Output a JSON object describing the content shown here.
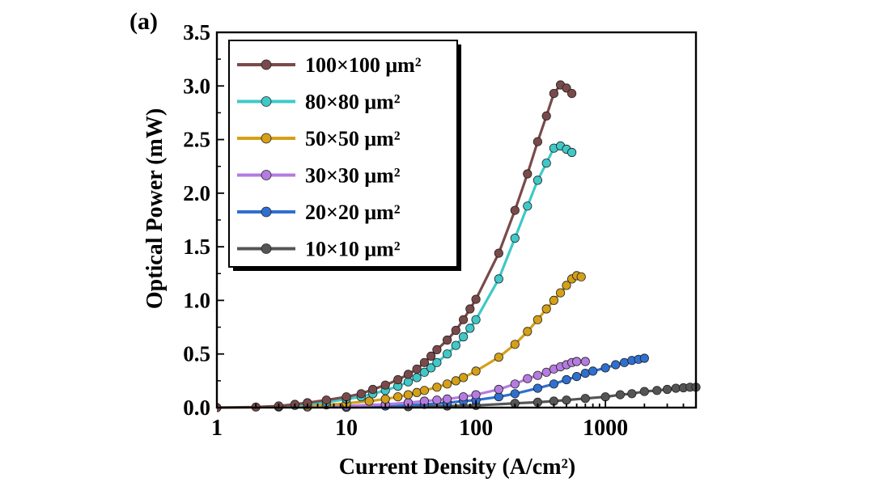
{
  "panel_label": "(a)",
  "chart_data": {
    "type": "line",
    "title": "",
    "xlabel": "Current Density (A/cm²)",
    "ylabel": "Optical Power (mW)",
    "x_scale": "log",
    "xlim": [
      1,
      5000
    ],
    "ylim": [
      0,
      3.5
    ],
    "x_ticks": [
      "1",
      "10",
      "100",
      "1000"
    ],
    "y_ticks": [
      "0.0",
      "0.5",
      "1.0",
      "1.5",
      "2.0",
      "2.5",
      "3.0",
      "3.5"
    ],
    "legend_position": "top-left",
    "grid": false,
    "series": [
      {
        "name": "100×100 μm²",
        "color": "#7a4a4a",
        "points": [
          [
            1,
            0
          ],
          [
            2,
            0.005
          ],
          [
            3,
            0.015
          ],
          [
            4,
            0.03
          ],
          [
            5,
            0.045
          ],
          [
            7,
            0.07
          ],
          [
            10,
            0.1
          ],
          [
            13,
            0.13
          ],
          [
            16,
            0.17
          ],
          [
            20,
            0.21
          ],
          [
            25,
            0.26
          ],
          [
            30,
            0.31
          ],
          [
            35,
            0.36
          ],
          [
            40,
            0.42
          ],
          [
            45,
            0.48
          ],
          [
            50,
            0.54
          ],
          [
            60,
            0.63
          ],
          [
            70,
            0.72
          ],
          [
            80,
            0.82
          ],
          [
            90,
            0.92
          ],
          [
            100,
            1.01
          ],
          [
            150,
            1.44
          ],
          [
            200,
            1.84
          ],
          [
            250,
            2.18
          ],
          [
            300,
            2.48
          ],
          [
            350,
            2.72
          ],
          [
            400,
            2.93
          ],
          [
            450,
            3.01
          ],
          [
            500,
            2.98
          ],
          [
            550,
            2.93
          ]
        ]
      },
      {
        "name": "80×80 μm²",
        "color": "#40c8c8",
        "points": [
          [
            3,
            0.01
          ],
          [
            4,
            0.02
          ],
          [
            5,
            0.03
          ],
          [
            7,
            0.05
          ],
          [
            10,
            0.08
          ],
          [
            13,
            0.1
          ],
          [
            16,
            0.13
          ],
          [
            20,
            0.16
          ],
          [
            25,
            0.2
          ],
          [
            30,
            0.24
          ],
          [
            35,
            0.28
          ],
          [
            40,
            0.33
          ],
          [
            45,
            0.37
          ],
          [
            50,
            0.42
          ],
          [
            60,
            0.5
          ],
          [
            70,
            0.58
          ],
          [
            80,
            0.66
          ],
          [
            90,
            0.74
          ],
          [
            100,
            0.82
          ],
          [
            150,
            1.2
          ],
          [
            200,
            1.58
          ],
          [
            250,
            1.88
          ],
          [
            300,
            2.12
          ],
          [
            350,
            2.28
          ],
          [
            400,
            2.42
          ],
          [
            450,
            2.44
          ],
          [
            500,
            2.41
          ],
          [
            550,
            2.38
          ]
        ]
      },
      {
        "name": "50×50 μm²",
        "color": "#d4a017",
        "points": [
          [
            3,
            0.005
          ],
          [
            5,
            0.015
          ],
          [
            7,
            0.025
          ],
          [
            10,
            0.04
          ],
          [
            15,
            0.06
          ],
          [
            20,
            0.08
          ],
          [
            25,
            0.1
          ],
          [
            30,
            0.12
          ],
          [
            35,
            0.14
          ],
          [
            40,
            0.16
          ],
          [
            50,
            0.19
          ],
          [
            60,
            0.22
          ],
          [
            70,
            0.25
          ],
          [
            80,
            0.28
          ],
          [
            100,
            0.34
          ],
          [
            150,
            0.47
          ],
          [
            200,
            0.59
          ],
          [
            250,
            0.71
          ],
          [
            300,
            0.82
          ],
          [
            350,
            0.92
          ],
          [
            400,
            1.0
          ],
          [
            450,
            1.07
          ],
          [
            500,
            1.14
          ],
          [
            550,
            1.2
          ],
          [
            600,
            1.23
          ],
          [
            650,
            1.22
          ]
        ]
      },
      {
        "name": "30×30 μm²",
        "color": "#b57be0",
        "points": [
          [
            5,
            0.005
          ],
          [
            10,
            0.015
          ],
          [
            20,
            0.03
          ],
          [
            30,
            0.045
          ],
          [
            40,
            0.06
          ],
          [
            50,
            0.07
          ],
          [
            60,
            0.08
          ],
          [
            80,
            0.1
          ],
          [
            100,
            0.12
          ],
          [
            150,
            0.17
          ],
          [
            200,
            0.22
          ],
          [
            250,
            0.27
          ],
          [
            300,
            0.3
          ],
          [
            350,
            0.33
          ],
          [
            400,
            0.36
          ],
          [
            450,
            0.38
          ],
          [
            500,
            0.4
          ],
          [
            550,
            0.42
          ],
          [
            600,
            0.43
          ],
          [
            700,
            0.43
          ]
        ]
      },
      {
        "name": "20×20 μm²",
        "color": "#2f6fd0",
        "points": [
          [
            10,
            0.005
          ],
          [
            20,
            0.015
          ],
          [
            40,
            0.03
          ],
          [
            60,
            0.045
          ],
          [
            80,
            0.06
          ],
          [
            100,
            0.07
          ],
          [
            150,
            0.1
          ],
          [
            200,
            0.13
          ],
          [
            300,
            0.18
          ],
          [
            400,
            0.22
          ],
          [
            500,
            0.26
          ],
          [
            600,
            0.29
          ],
          [
            700,
            0.32
          ],
          [
            800,
            0.34
          ],
          [
            1000,
            0.37
          ],
          [
            1200,
            0.4
          ],
          [
            1400,
            0.42
          ],
          [
            1600,
            0.44
          ],
          [
            1800,
            0.45
          ],
          [
            2000,
            0.46
          ]
        ]
      },
      {
        "name": "10×10 μm²",
        "color": "#555555",
        "points": [
          [
            10,
            0.002
          ],
          [
            30,
            0.008
          ],
          [
            60,
            0.015
          ],
          [
            100,
            0.02
          ],
          [
            200,
            0.04
          ],
          [
            300,
            0.05
          ],
          [
            400,
            0.06
          ],
          [
            500,
            0.07
          ],
          [
            700,
            0.085
          ],
          [
            1000,
            0.1
          ],
          [
            1300,
            0.12
          ],
          [
            1600,
            0.13
          ],
          [
            2000,
            0.15
          ],
          [
            2500,
            0.16
          ],
          [
            3000,
            0.17
          ],
          [
            3500,
            0.18
          ],
          [
            4000,
            0.185
          ],
          [
            4500,
            0.19
          ],
          [
            5000,
            0.19
          ]
        ]
      }
    ]
  }
}
